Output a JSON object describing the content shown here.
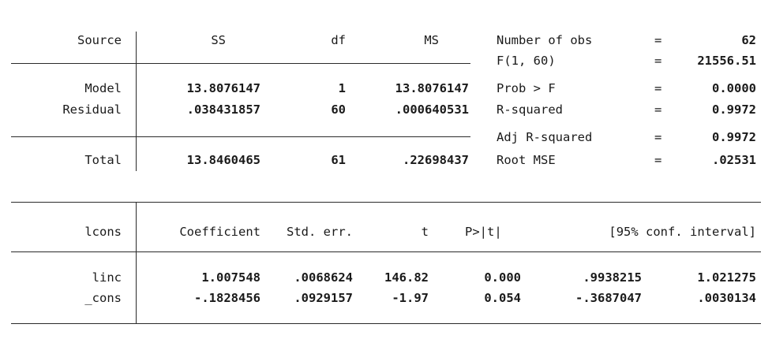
{
  "anova": {
    "headers": {
      "source": "Source",
      "ss": "SS",
      "df": "df",
      "ms": "MS"
    },
    "rows": [
      {
        "source": "Model",
        "ss": "13.8076147",
        "df": "1",
        "ms": "13.8076147"
      },
      {
        "source": "Residual",
        "ss": ".038431857",
        "df": "60",
        "ms": ".000640531"
      }
    ],
    "total": {
      "source": "Total",
      "ss": "13.8460465",
      "df": "61",
      "ms": ".22698437"
    }
  },
  "stats": [
    {
      "label": "Number of obs",
      "eq": "=",
      "value": "62"
    },
    {
      "label": "F(1, 60)",
      "eq": "=",
      "value": "21556.51"
    },
    {
      "label": "Prob > F",
      "eq": "=",
      "value": "0.0000"
    },
    {
      "label": "R-squared",
      "eq": "=",
      "value": "0.9972"
    },
    {
      "label": "Adj R-squared",
      "eq": "=",
      "value": "0.9972"
    },
    {
      "label": "Root MSE",
      "eq": "=",
      "value": ".02531"
    }
  ],
  "coef": {
    "headers": {
      "var": "lcons",
      "coef": "Coefficient",
      "se": "Std. err.",
      "t": "t",
      "p": "P>|t|",
      "ci": "[95% conf. interval]"
    },
    "rows": [
      {
        "var": "linc",
        "coef": "1.007548",
        "se": ".0068624",
        "t": "146.82",
        "p": "0.000",
        "ci_lo": ".9938215",
        "ci_hi": "1.021275"
      },
      {
        "var": "_cons",
        "coef": "-.1828456",
        "se": ".0929157",
        "t": "-1.97",
        "p": "0.054",
        "ci_lo": "-.3687047",
        "ci_hi": ".0030134"
      }
    ]
  }
}
